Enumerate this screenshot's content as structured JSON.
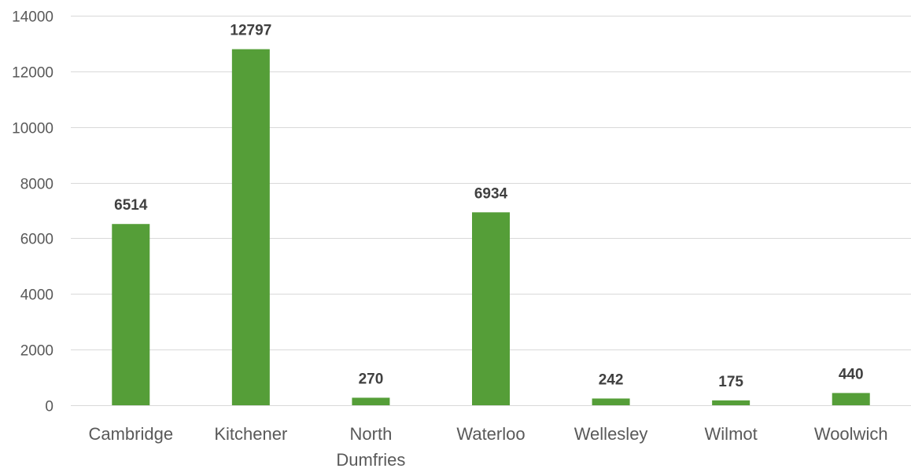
{
  "chart_data": {
    "type": "bar",
    "title": "",
    "xlabel": "",
    "ylabel": "",
    "categories": [
      [
        "Cambridge"
      ],
      [
        "Kitchener"
      ],
      [
        "North",
        "Dumfries"
      ],
      [
        "Waterloo"
      ],
      [
        "Wellesley"
      ],
      [
        "Wilmot"
      ],
      [
        "Woolwich"
      ]
    ],
    "values": [
      6514,
      12797,
      270,
      6934,
      242,
      175,
      440
    ],
    "data_labels": [
      "6514",
      "12797",
      "270",
      "6934",
      "242",
      "175",
      "440"
    ],
    "ylim": [
      0,
      14000
    ],
    "yticks": [
      0,
      2000,
      4000,
      6000,
      8000,
      10000,
      12000,
      14000
    ],
    "ytick_labels": [
      "0",
      "2000",
      "4000",
      "6000",
      "8000",
      "10000",
      "12000",
      "14000"
    ],
    "grid": true,
    "legend": "none",
    "colors": {
      "bar": "#559e38",
      "grid": "#d9d9d9",
      "tick_text": "#595959",
      "data_label_text": "#404040"
    }
  }
}
